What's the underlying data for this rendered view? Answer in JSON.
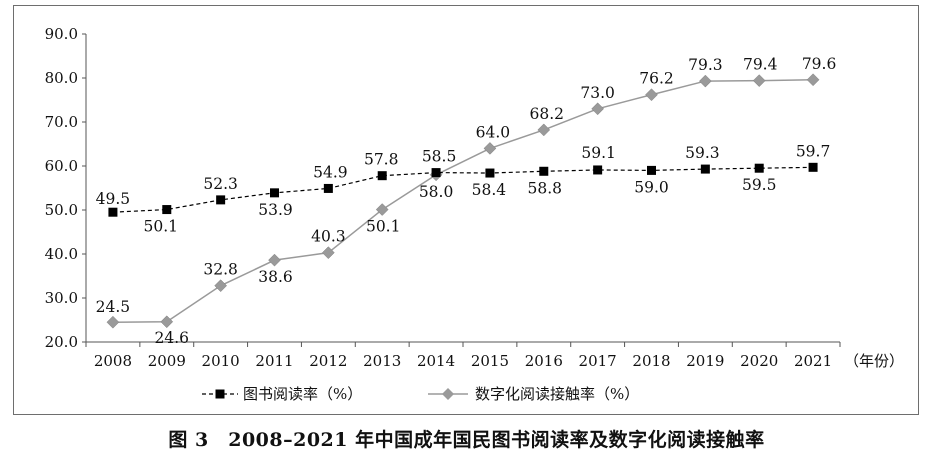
{
  "chart_data": {
    "type": "line",
    "caption": "图 3　2008–2021 年中国成年国民图书阅读率及数字化阅读接触率",
    "x_unit_label": "（年份）",
    "categories": [
      "2008",
      "2009",
      "2010",
      "2011",
      "2012",
      "2013",
      "2014",
      "2015",
      "2016",
      "2017",
      "2018",
      "2019",
      "2020",
      "2021"
    ],
    "ylim": [
      20.0,
      90.0
    ],
    "y_ticks": [
      "20.0",
      "30.0",
      "40.0",
      "50.0",
      "60.0",
      "70.0",
      "80.0",
      "90.0"
    ],
    "grid": false,
    "legend_position": "bottom",
    "series": [
      {
        "name": "图书阅读率（%）",
        "marker": "square",
        "line_style": "dashed",
        "color": "#000000",
        "values": [
          49.5,
          50.1,
          52.3,
          53.9,
          54.9,
          57.8,
          58.5,
          58.4,
          58.8,
          59.1,
          59.0,
          59.3,
          59.5,
          59.7
        ],
        "labels": [
          "49.5",
          "50.1",
          "52.3",
          "53.9",
          "54.9",
          "57.8",
          "58.5",
          "58.4",
          "58.8",
          "59.1",
          "59.0",
          "59.3",
          "59.5",
          "59.7"
        ]
      },
      {
        "name": "数字化阅读接触率（%）",
        "marker": "diamond",
        "line_style": "solid",
        "color": "#9a9a9a",
        "values": [
          24.5,
          24.6,
          32.8,
          38.6,
          40.3,
          50.1,
          58.0,
          64.0,
          68.2,
          73.0,
          76.2,
          79.3,
          79.4,
          79.6
        ],
        "labels": [
          "24.5",
          "24.6",
          "32.8",
          "38.6",
          "40.3",
          "50.1",
          "58.0",
          "64.0",
          "68.2",
          "73.0",
          "76.2",
          "79.3",
          "79.4",
          "79.6"
        ]
      }
    ]
  }
}
